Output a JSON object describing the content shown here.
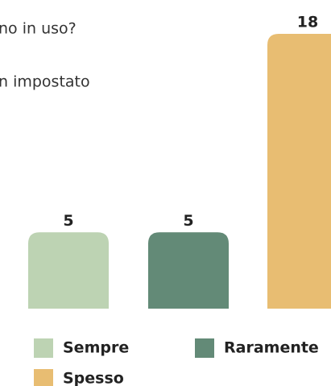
{
  "chart_data": {
    "type": "bar",
    "title_lines": [
      "no in uso?",
      "n impostato"
    ],
    "categories": [
      "Sempre",
      "Raramente",
      "Spesso"
    ],
    "values": [
      5,
      5,
      18
    ],
    "colors": [
      "#bdd3b3",
      "#638a77",
      "#e8bd72"
    ]
  }
}
